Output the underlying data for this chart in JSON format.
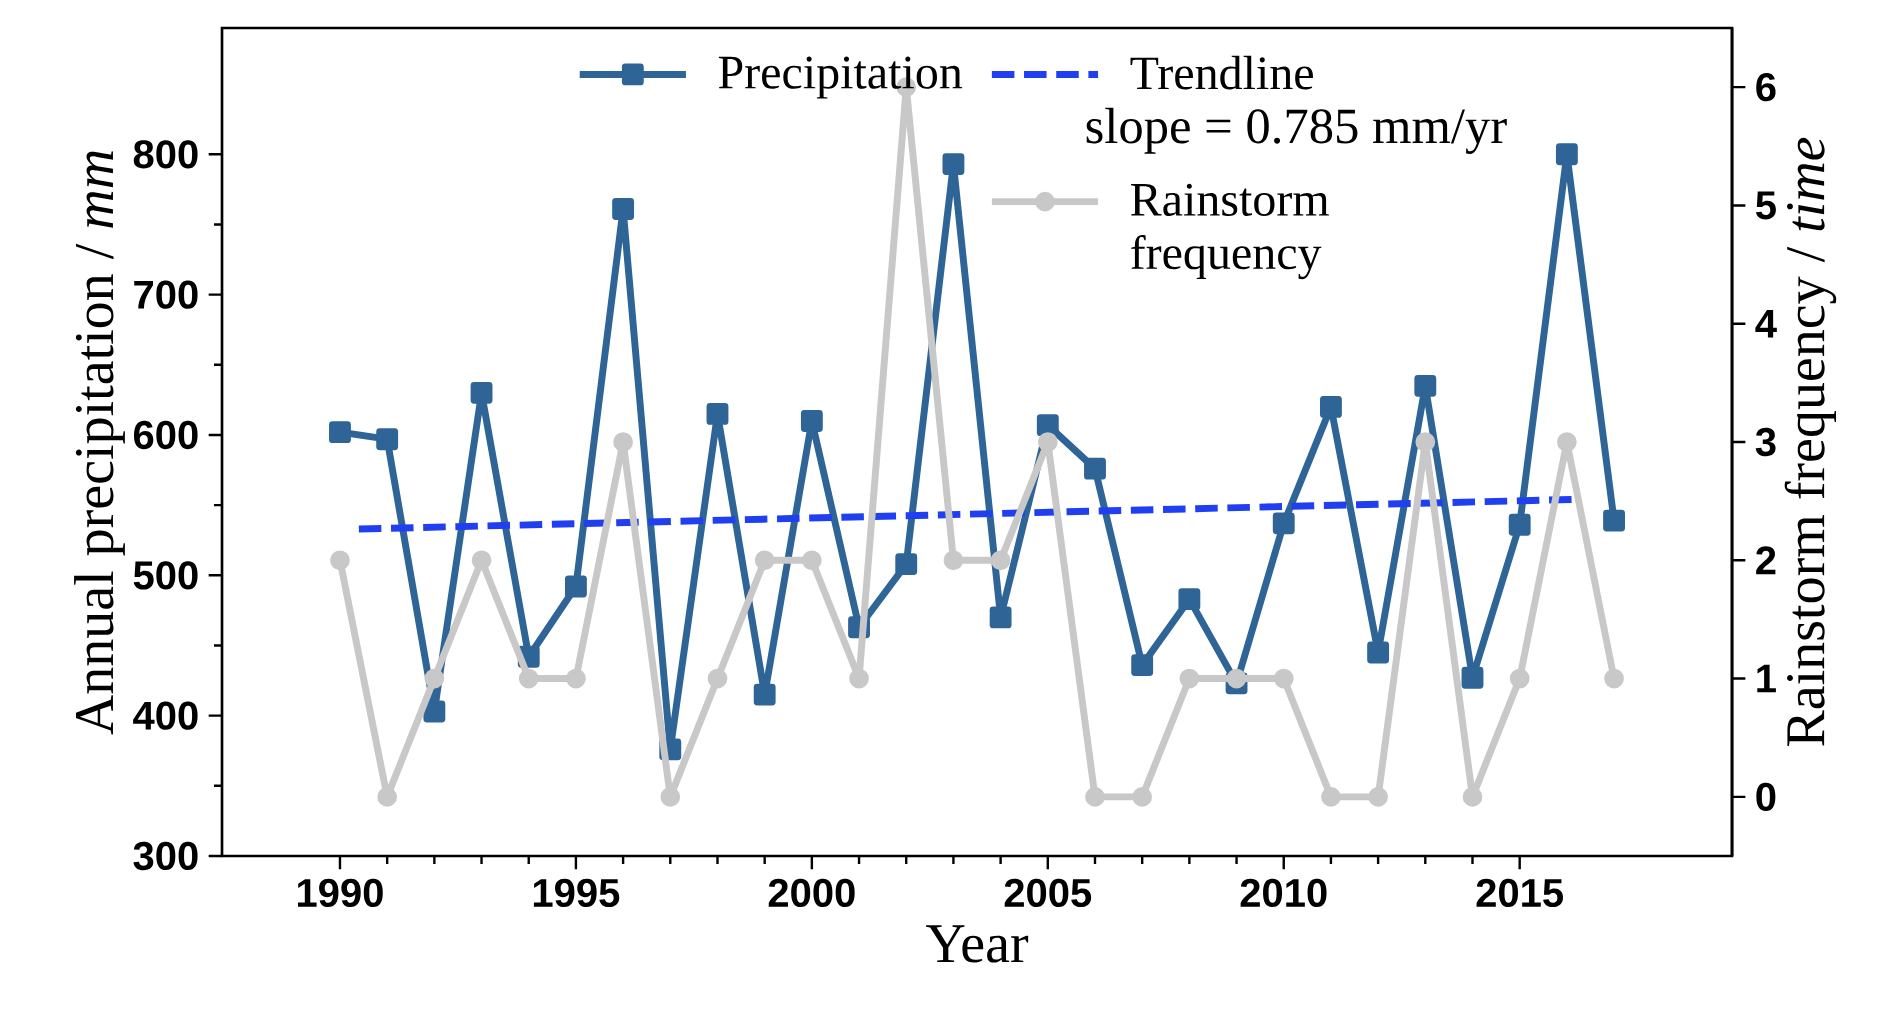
{
  "chart_data": {
    "type": "line",
    "xlabel": "Year",
    "ylabel": "Annual precipitation / *mm*",
    "y2label": "Rainstorm frequency / *time*",
    "x": [
      1990,
      1991,
      1992,
      1993,
      1994,
      1995,
      1996,
      1997,
      1998,
      1999,
      2000,
      2001,
      2002,
      2003,
      2004,
      2005,
      2006,
      2007,
      2008,
      2009,
      2010,
      2011,
      2012,
      2013,
      2014,
      2015,
      2016,
      2017
    ],
    "series": [
      {
        "name": "Precipitation",
        "color": "#2e6496",
        "marker": "square",
        "line_style": "solid",
        "values": [
          602,
          597,
          403,
          630,
          442,
          492,
          761,
          376,
          615,
          415,
          610,
          463,
          508,
          793,
          470,
          607,
          576,
          436,
          483,
          423,
          537,
          620,
          445,
          635,
          427,
          536,
          800,
          539
        ]
      },
      {
        "name": "Trendline",
        "color": "#1f3ff0",
        "marker": "none",
        "line_style": "dashed",
        "x": [
          1990.4,
          2016.1
        ],
        "values": [
          533,
          554
        ]
      },
      {
        "name": "Rainstorm frequency",
        "color": "#c8c8c8",
        "marker": "circle",
        "line_style": "solid",
        "axis": "y2",
        "values": [
          2,
          0,
          1,
          2,
          1,
          1,
          3,
          0,
          1,
          2,
          2,
          1,
          6,
          2,
          2,
          3,
          0,
          0,
          1,
          1,
          1,
          0,
          0,
          3,
          0,
          1,
          3,
          1
        ]
      }
    ],
    "xlim": [
      1987.5,
      2019.5
    ],
    "xticks": [
      1990,
      1995,
      2000,
      2005,
      2010,
      2015
    ],
    "ylim": [
      300,
      890
    ],
    "yticks": [
      300,
      400,
      500,
      600,
      700,
      800
    ],
    "y2lim": [
      -0.5,
      6.5
    ],
    "y2ticks": [
      0,
      1,
      2,
      3,
      4,
      5,
      6
    ],
    "legend": "top",
    "grid": false,
    "annotations": [
      "slope = 0.785 mm/yr"
    ]
  }
}
